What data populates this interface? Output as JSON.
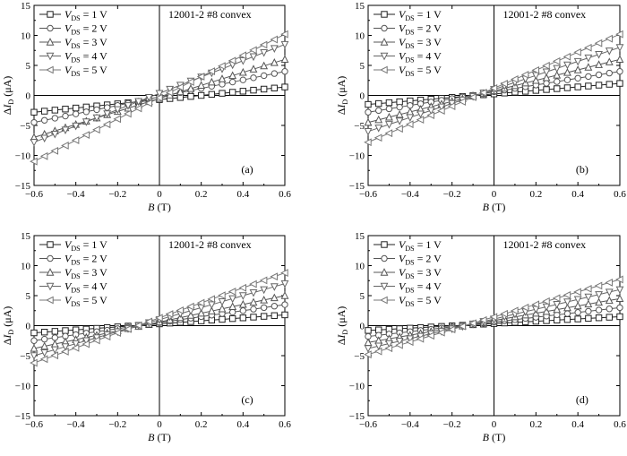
{
  "chart_data": [
    {
      "type": "line",
      "panel_label": "(a)",
      "annotation": "12001-2 #8  convex",
      "xlabel": {
        "var": "B",
        "unit": " (T)"
      },
      "ylabel": {
        "pre": "Δ",
        "var": "I",
        "sub": "D",
        "unit": " (μA)"
      },
      "xlim": [
        -0.6,
        0.6
      ],
      "ylim": [
        -15,
        15
      ],
      "xticks": [
        -0.6,
        -0.4,
        -0.2,
        0,
        0.2,
        0.4,
        0.6
      ],
      "yticks": [
        -15,
        -10,
        -5,
        0,
        5,
        10,
        15
      ],
      "legend_position": "top-left",
      "x": [
        -0.6,
        -0.55,
        -0.5,
        -0.45,
        -0.4,
        -0.35,
        -0.3,
        -0.25,
        -0.2,
        -0.15,
        -0.1,
        -0.05,
        0,
        0.05,
        0.1,
        0.15,
        0.2,
        0.25,
        0.3,
        0.35,
        0.4,
        0.45,
        0.5,
        0.55,
        0.6
      ],
      "series": [
        {
          "legend": {
            "var": "V",
            "sub": "DS",
            "rest": " = 1 V"
          },
          "marker": "square",
          "color": "#222222",
          "endpoints": [
            [
              -0.6,
              -2.8
            ],
            [
              0.6,
              1.4
            ]
          ]
        },
        {
          "legend": {
            "var": "V",
            "sub": "DS",
            "rest": " = 2 V"
          },
          "marker": "circle",
          "color": "#555555",
          "endpoints": [
            [
              -0.6,
              -4.5
            ],
            [
              0.6,
              4.0
            ]
          ]
        },
        {
          "legend": {
            "var": "V",
            "sub": "DS",
            "rest": " = 3 V"
          },
          "marker": "triangle-up",
          "color": "#555555",
          "endpoints": [
            [
              -0.6,
              -7.0
            ],
            [
              0.6,
              6.0
            ]
          ]
        },
        {
          "legend": {
            "var": "V",
            "sub": "DS",
            "rest": " = 4 V"
          },
          "marker": "triangle-down",
          "color": "#666666",
          "endpoints": [
            [
              -0.6,
              -7.8
            ],
            [
              0.6,
              8.5
            ]
          ]
        },
        {
          "legend": {
            "var": "V",
            "sub": "DS",
            "rest": " = 5 V"
          },
          "marker": "triangle-left",
          "color": "#777777",
          "endpoints": [
            [
              -0.6,
              -11.0
            ],
            [
              0.6,
              10.2
            ]
          ]
        }
      ]
    },
    {
      "type": "line",
      "panel_label": "(b)",
      "annotation": "12001-2 #8  convex",
      "xlabel": {
        "var": "B",
        "unit": " (T)"
      },
      "ylabel": {
        "pre": "Δ",
        "var": "I",
        "sub": "D",
        "unit": " (μA)"
      },
      "xlim": [
        -0.6,
        0.6
      ],
      "ylim": [
        -15,
        15
      ],
      "xticks": [
        -0.6,
        -0.4,
        -0.2,
        0,
        0.2,
        0.4,
        0.6
      ],
      "yticks": [
        -15,
        -10,
        -5,
        0,
        5,
        10,
        15
      ],
      "legend_position": "top-left",
      "x": [
        -0.6,
        -0.55,
        -0.5,
        -0.45,
        -0.4,
        -0.35,
        -0.3,
        -0.25,
        -0.2,
        -0.15,
        -0.1,
        -0.05,
        0,
        0.05,
        0.1,
        0.15,
        0.2,
        0.25,
        0.3,
        0.35,
        0.4,
        0.45,
        0.5,
        0.55,
        0.6
      ],
      "series": [
        {
          "legend": {
            "var": "V",
            "sub": "DS",
            "rest": " = 1 V"
          },
          "marker": "square",
          "color": "#222222",
          "endpoints": [
            [
              -0.6,
              -1.5
            ],
            [
              0.6,
              2.0
            ]
          ]
        },
        {
          "legend": {
            "var": "V",
            "sub": "DS",
            "rest": " = 2 V"
          },
          "marker": "circle",
          "color": "#555555",
          "endpoints": [
            [
              -0.6,
              -2.8
            ],
            [
              0.6,
              4.0
            ]
          ]
        },
        {
          "legend": {
            "var": "V",
            "sub": "DS",
            "rest": " = 3 V"
          },
          "marker": "triangle-up",
          "color": "#555555",
          "endpoints": [
            [
              -0.6,
              -4.5
            ],
            [
              0.6,
              6.0
            ]
          ]
        },
        {
          "legend": {
            "var": "V",
            "sub": "DS",
            "rest": " = 4 V"
          },
          "marker": "triangle-down",
          "color": "#666666",
          "endpoints": [
            [
              -0.6,
              -6.0
            ],
            [
              0.6,
              8.0
            ]
          ]
        },
        {
          "legend": {
            "var": "V",
            "sub": "DS",
            "rest": " = 5 V"
          },
          "marker": "triangle-left",
          "color": "#777777",
          "endpoints": [
            [
              -0.6,
              -7.8
            ],
            [
              0.6,
              10.2
            ]
          ]
        }
      ]
    },
    {
      "type": "line",
      "panel_label": "(c)",
      "annotation": "12001-2 #8  convex",
      "xlabel": {
        "var": "B",
        "unit": " (T)"
      },
      "ylabel": {
        "pre": "Δ",
        "var": "I",
        "sub": "D",
        "unit": " (μA)"
      },
      "xlim": [
        -0.6,
        0.6
      ],
      "ylim": [
        -15,
        15
      ],
      "xticks": [
        -0.6,
        -0.4,
        -0.2,
        0,
        0.2,
        0.4,
        0.6
      ],
      "yticks": [
        -15,
        -10,
        -5,
        0,
        5,
        10,
        15
      ],
      "legend_position": "top-left",
      "x": [
        -0.6,
        -0.55,
        -0.5,
        -0.45,
        -0.4,
        -0.35,
        -0.3,
        -0.25,
        -0.2,
        -0.15,
        -0.1,
        -0.05,
        0,
        0.05,
        0.1,
        0.15,
        0.2,
        0.25,
        0.3,
        0.35,
        0.4,
        0.45,
        0.5,
        0.55,
        0.6
      ],
      "series": [
        {
          "legend": {
            "var": "V",
            "sub": "DS",
            "rest": " = 1 V"
          },
          "marker": "square",
          "color": "#222222",
          "endpoints": [
            [
              -0.6,
              -1.2
            ],
            [
              0.6,
              1.8
            ]
          ]
        },
        {
          "legend": {
            "var": "V",
            "sub": "DS",
            "rest": " = 2 V"
          },
          "marker": "circle",
          "color": "#555555",
          "endpoints": [
            [
              -0.6,
              -2.5
            ],
            [
              0.6,
              3.5
            ]
          ]
        },
        {
          "legend": {
            "var": "V",
            "sub": "DS",
            "rest": " = 3 V"
          },
          "marker": "triangle-up",
          "color": "#555555",
          "endpoints": [
            [
              -0.6,
              -3.8
            ],
            [
              0.6,
              5.0
            ]
          ]
        },
        {
          "legend": {
            "var": "V",
            "sub": "DS",
            "rest": " = 4 V"
          },
          "marker": "triangle-down",
          "color": "#666666",
          "endpoints": [
            [
              -0.6,
              -5.0
            ],
            [
              0.6,
              7.0
            ]
          ]
        },
        {
          "legend": {
            "var": "V",
            "sub": "DS",
            "rest": " = 5 V"
          },
          "marker": "triangle-left",
          "color": "#777777",
          "endpoints": [
            [
              -0.6,
              -6.2
            ],
            [
              0.6,
              8.8
            ]
          ]
        }
      ]
    },
    {
      "type": "line",
      "panel_label": "(d)",
      "annotation": "12001-2 #8  convex",
      "xlabel": {
        "var": "B",
        "unit": " (T)"
      },
      "ylabel": {
        "pre": "Δ",
        "var": "I",
        "sub": "D",
        "unit": " (μA)"
      },
      "xlim": [
        -0.6,
        0.6
      ],
      "ylim": [
        -15,
        15
      ],
      "xticks": [
        -0.6,
        -0.4,
        -0.2,
        0,
        0.2,
        0.4,
        0.6
      ],
      "yticks": [
        -15,
        -10,
        -5,
        0,
        5,
        10,
        15
      ],
      "legend_position": "top-left",
      "x": [
        -0.6,
        -0.55,
        -0.5,
        -0.45,
        -0.4,
        -0.35,
        -0.3,
        -0.25,
        -0.2,
        -0.15,
        -0.1,
        -0.05,
        0,
        0.05,
        0.1,
        0.15,
        0.2,
        0.25,
        0.3,
        0.35,
        0.4,
        0.45,
        0.5,
        0.55,
        0.6
      ],
      "series": [
        {
          "legend": {
            "var": "V",
            "sub": "DS",
            "rest": " = 1 V"
          },
          "marker": "square",
          "color": "#222222",
          "endpoints": [
            [
              -0.6,
              -0.8
            ],
            [
              0.6,
              1.5
            ]
          ]
        },
        {
          "legend": {
            "var": "V",
            "sub": "DS",
            "rest": " = 2 V"
          },
          "marker": "circle",
          "color": "#555555",
          "endpoints": [
            [
              -0.6,
              -1.8
            ],
            [
              0.6,
              3.0
            ]
          ]
        },
        {
          "legend": {
            "var": "V",
            "sub": "DS",
            "rest": " = 3 V"
          },
          "marker": "triangle-up",
          "color": "#555555",
          "endpoints": [
            [
              -0.6,
              -2.8
            ],
            [
              0.6,
              4.5
            ]
          ]
        },
        {
          "legend": {
            "var": "V",
            "sub": "DS",
            "rest": " = 4 V"
          },
          "marker": "triangle-down",
          "color": "#666666",
          "endpoints": [
            [
              -0.6,
              -3.8
            ],
            [
              0.6,
              6.0
            ]
          ]
        },
        {
          "legend": {
            "var": "V",
            "sub": "DS",
            "rest": " = 5 V"
          },
          "marker": "triangle-left",
          "color": "#777777",
          "endpoints": [
            [
              -0.6,
              -4.8
            ],
            [
              0.6,
              7.7
            ]
          ]
        }
      ]
    }
  ]
}
